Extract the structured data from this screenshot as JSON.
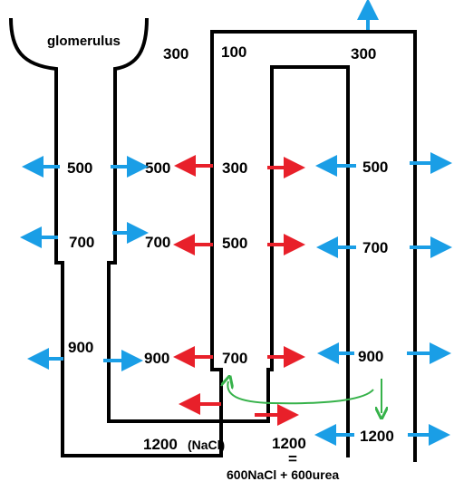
{
  "diagram": {
    "glomerulus_label": "glomerulus",
    "cortex_top_left": "300",
    "cortex_top_mid": "100",
    "cortex_top_right": "300",
    "row_500": {
      "proximal_in": "500",
      "proximal_out": "500",
      "ascending": "300",
      "collecting": "500"
    },
    "row_700": {
      "proximal_in": "700",
      "proximal_out": "700",
      "ascending": "500",
      "collecting": "700"
    },
    "row_900": {
      "proximal_in": "900",
      "proximal_out": "900",
      "ascending": "700",
      "collecting": "900"
    },
    "bottom": {
      "loop_value": "1200",
      "loop_unit": "(NaCl)",
      "interstitial_value": "1200",
      "equals": "=",
      "composition": "600NaCl + 600urea",
      "collecting": "1200"
    },
    "colors": {
      "water_arrow": "#1a9ee6",
      "salt_arrow": "#e8202a",
      "urea_arrow": "#36b24a",
      "tubule": "#000000"
    }
  }
}
